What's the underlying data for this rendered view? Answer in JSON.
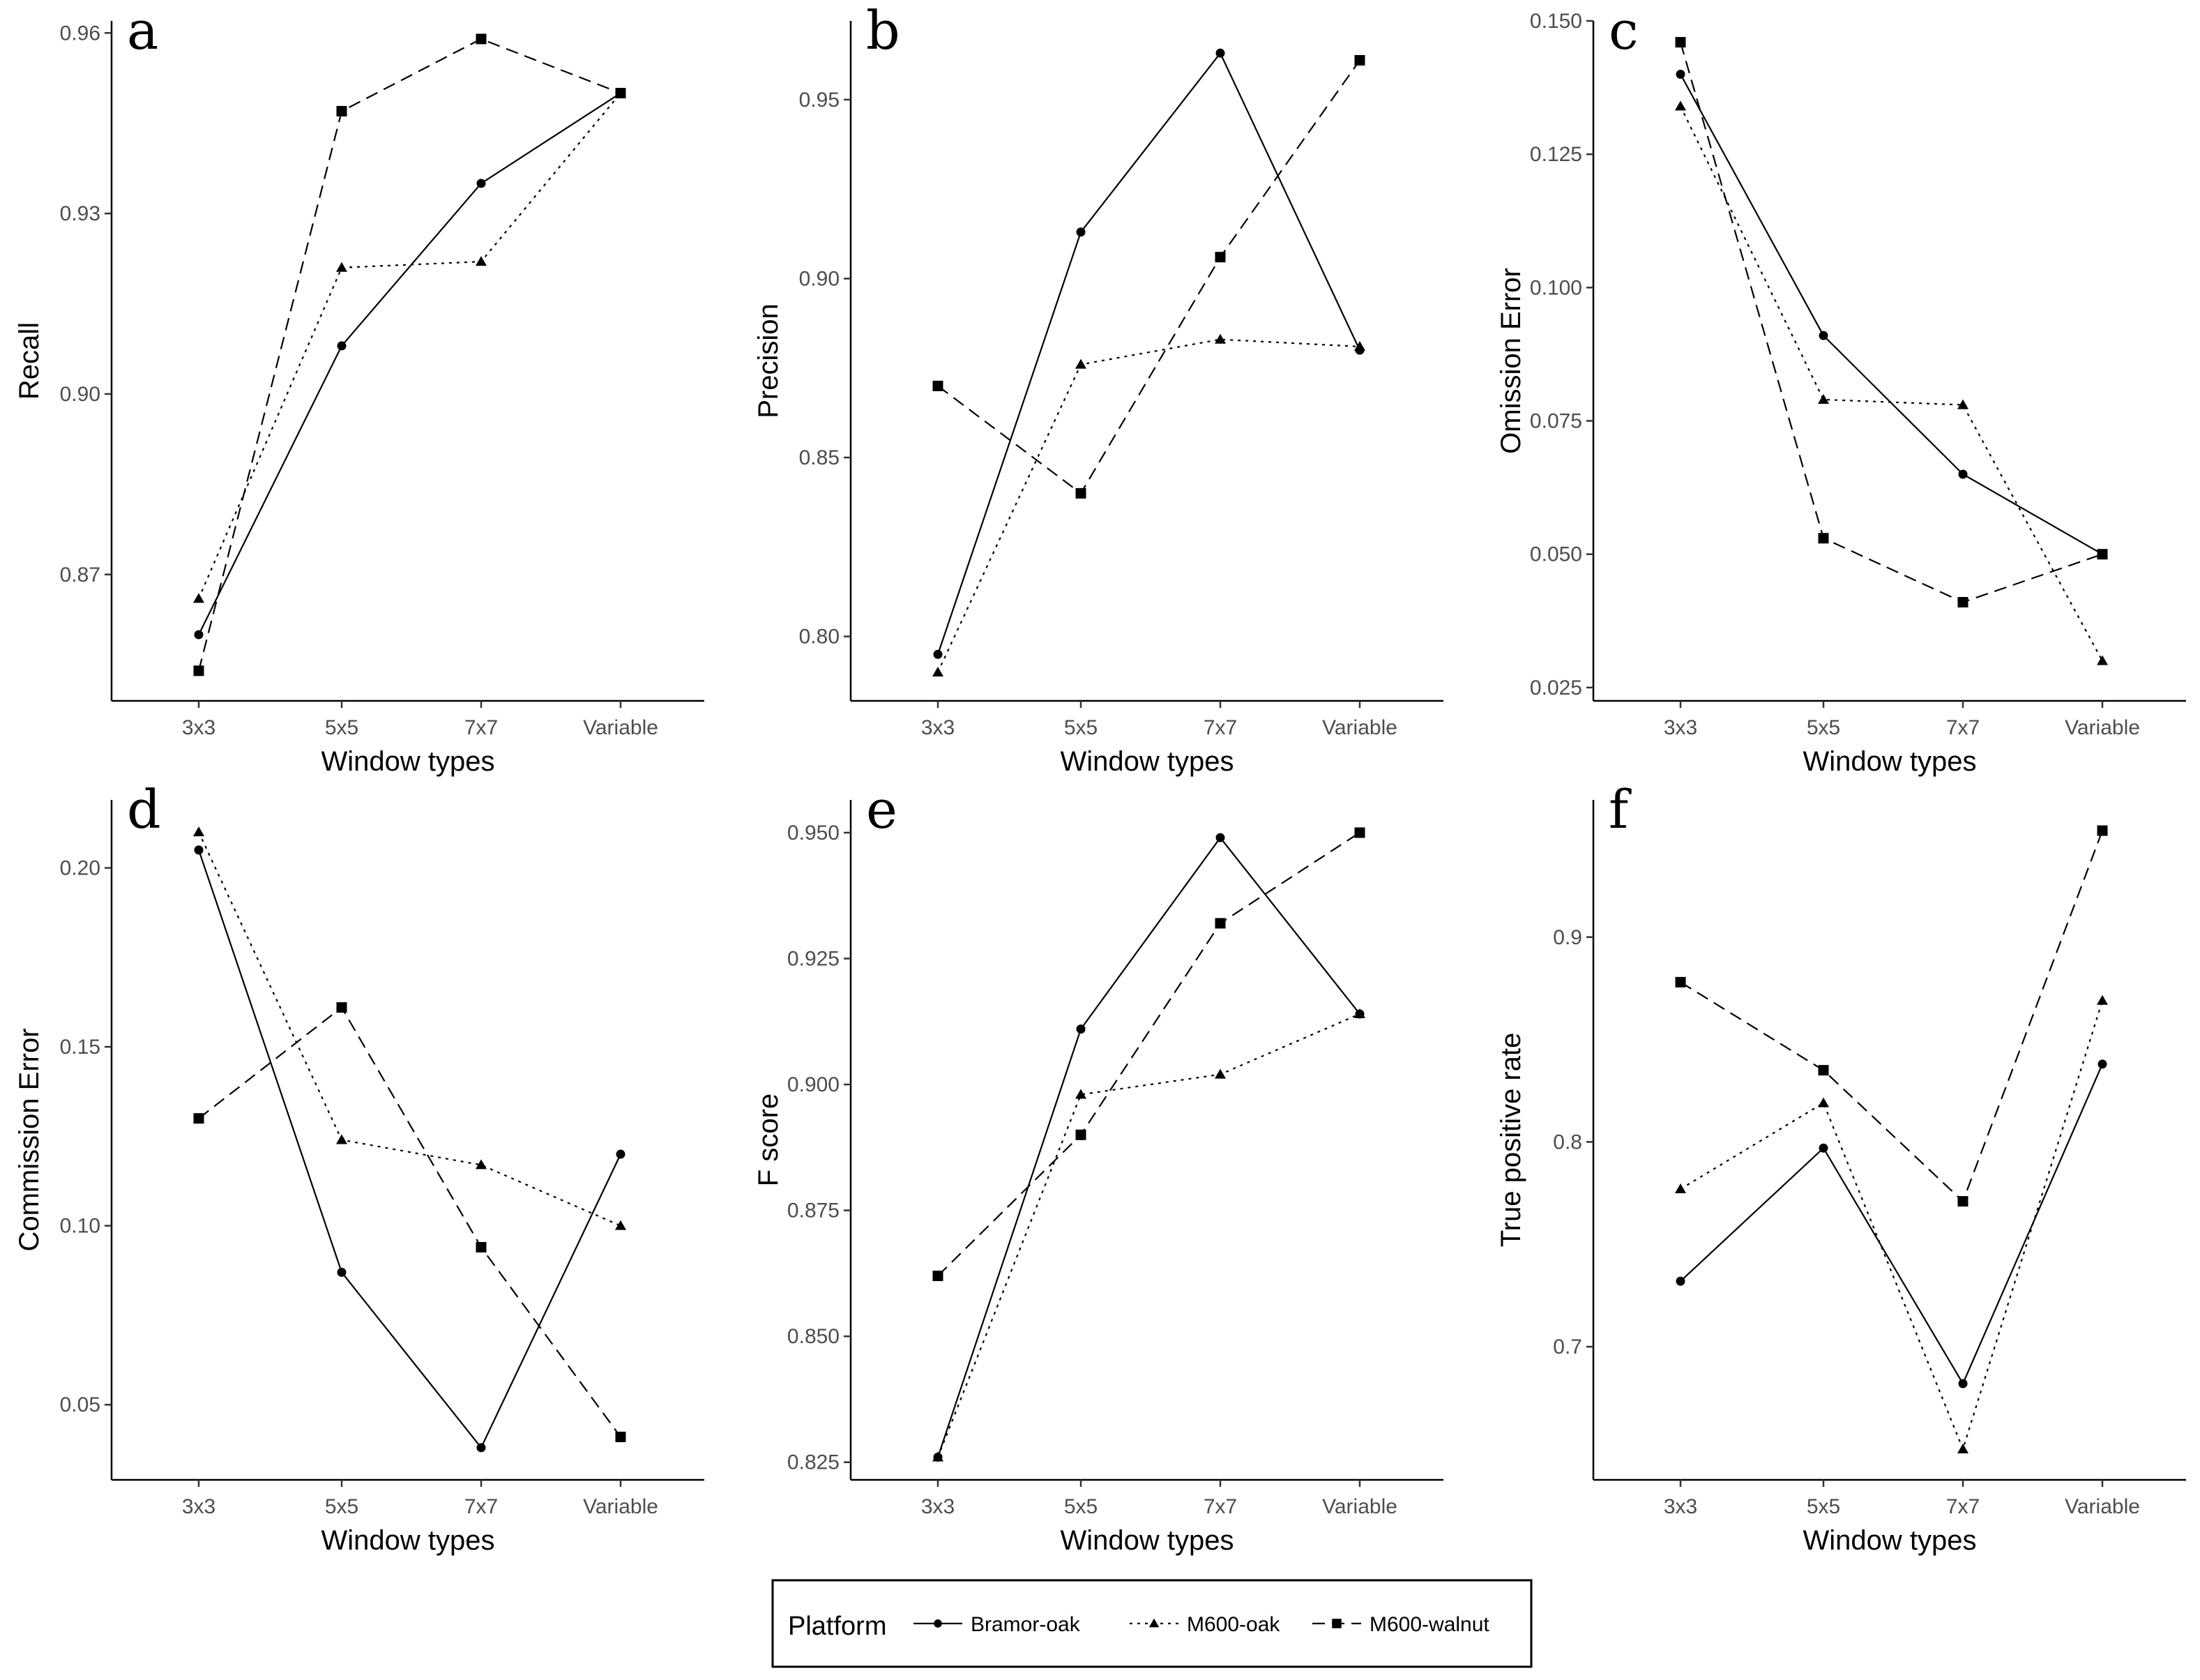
{
  "chart_data": [
    {
      "panel": "a",
      "type": "line",
      "categories": [
        "3x3",
        "5x5",
        "7x7",
        "Variable"
      ],
      "xlabel": "Window types",
      "ylabel": "Recall",
      "ylim": [
        0.849,
        0.962
      ],
      "yticks": [
        0.87,
        0.9,
        0.93,
        0.96
      ],
      "ytick_labels": [
        "0.87",
        "0.90",
        "0.93",
        "0.96"
      ],
      "series": [
        {
          "name": "Bramor-oak",
          "values": [
            0.86,
            0.908,
            0.935,
            0.95
          ]
        },
        {
          "name": "M600-oak",
          "values": [
            0.866,
            0.921,
            0.922,
            0.95
          ]
        },
        {
          "name": "M600-walnut",
          "values": [
            0.854,
            0.947,
            0.959,
            0.95
          ]
        }
      ]
    },
    {
      "panel": "b",
      "type": "line",
      "categories": [
        "3x3",
        "5x5",
        "7x7",
        "Variable"
      ],
      "xlabel": "Window types",
      "ylabel": "Precision",
      "ylim": [
        0.782,
        0.972
      ],
      "yticks": [
        0.8,
        0.85,
        0.9,
        0.95
      ],
      "ytick_labels": [
        "0.80",
        "0.85",
        "0.90",
        "0.95"
      ],
      "series": [
        {
          "name": "Bramor-oak",
          "values": [
            0.795,
            0.913,
            0.963,
            0.88
          ]
        },
        {
          "name": "M600-oak",
          "values": [
            0.79,
            0.876,
            0.883,
            0.881
          ]
        },
        {
          "name": "M600-walnut",
          "values": [
            0.87,
            0.84,
            0.906,
            0.961
          ]
        }
      ]
    },
    {
      "panel": "c",
      "type": "line",
      "categories": [
        "3x3",
        "5x5",
        "7x7",
        "Variable"
      ],
      "xlabel": "Window types",
      "ylabel": "Omission Error",
      "ylim": [
        0.0225,
        0.15
      ],
      "yticks": [
        0.025,
        0.05,
        0.075,
        0.1,
        0.125,
        0.15
      ],
      "ytick_labels": [
        "0.025",
        "0.050",
        "0.075",
        "0.100",
        "0.125",
        "0.150"
      ],
      "series": [
        {
          "name": "Bramor-oak",
          "values": [
            0.14,
            0.091,
            0.065,
            0.05
          ]
        },
        {
          "name": "M600-oak",
          "values": [
            0.134,
            0.079,
            0.078,
            0.03
          ]
        },
        {
          "name": "M600-walnut",
          "values": [
            0.146,
            0.053,
            0.041,
            0.05
          ]
        }
      ]
    },
    {
      "panel": "d",
      "type": "line",
      "categories": [
        "3x3",
        "5x5",
        "7x7",
        "Variable"
      ],
      "xlabel": "Window types",
      "ylabel": "Commission Error",
      "ylim": [
        0.029,
        0.219
      ],
      "yticks": [
        0.05,
        0.1,
        0.15,
        0.2
      ],
      "ytick_labels": [
        "0.05",
        "0.10",
        "0.15",
        "0.20"
      ],
      "series": [
        {
          "name": "Bramor-oak",
          "values": [
            0.205,
            0.087,
            0.038,
            0.12
          ]
        },
        {
          "name": "M600-oak",
          "values": [
            0.21,
            0.124,
            0.117,
            0.1
          ]
        },
        {
          "name": "M600-walnut",
          "values": [
            0.13,
            0.161,
            0.094,
            0.041
          ]
        }
      ]
    },
    {
      "panel": "e",
      "type": "line",
      "categories": [
        "3x3",
        "5x5",
        "7x7",
        "Variable"
      ],
      "xlabel": "Window types",
      "ylabel": "F score",
      "ylim": [
        0.8215,
        0.9565
      ],
      "yticks": [
        0.825,
        0.85,
        0.875,
        0.9,
        0.925,
        0.95
      ],
      "ytick_labels": [
        "0.825",
        "0.850",
        "0.875",
        "0.900",
        "0.925",
        "0.950"
      ],
      "series": [
        {
          "name": "Bramor-oak",
          "values": [
            0.826,
            0.911,
            0.949,
            0.914
          ]
        },
        {
          "name": "M600-oak",
          "values": [
            0.826,
            0.898,
            0.902,
            0.914
          ]
        },
        {
          "name": "M600-walnut",
          "values": [
            0.862,
            0.89,
            0.932,
            0.95
          ]
        }
      ]
    },
    {
      "panel": "f",
      "type": "line",
      "categories": [
        "3x3",
        "5x5",
        "7x7",
        "Variable"
      ],
      "xlabel": "Window types",
      "ylabel": "True positive rate",
      "ylim": [
        0.635,
        0.967
      ],
      "yticks": [
        0.7,
        0.8,
        0.9
      ],
      "ytick_labels": [
        "0.7",
        "0.8",
        "0.9"
      ],
      "series": [
        {
          "name": "Bramor-oak",
          "values": [
            0.732,
            0.797,
            0.682,
            0.838
          ]
        },
        {
          "name": "M600-oak",
          "values": [
            0.777,
            0.819,
            0.65,
            0.869
          ]
        },
        {
          "name": "M600-walnut",
          "values": [
            0.878,
            0.835,
            0.771,
            0.952
          ]
        }
      ]
    }
  ],
  "legend": {
    "title": "Platform",
    "items": [
      {
        "label": "Bramor-oak",
        "marker": "circle",
        "dash": "solid"
      },
      {
        "label": "M600-oak",
        "marker": "triangle",
        "dash": "dotted"
      },
      {
        "label": "M600-walnut",
        "marker": "square",
        "dash": "dashed"
      }
    ]
  },
  "colors": {
    "line": "#000000",
    "tick_text": "#4d4d4d",
    "background": "#ffffff"
  }
}
